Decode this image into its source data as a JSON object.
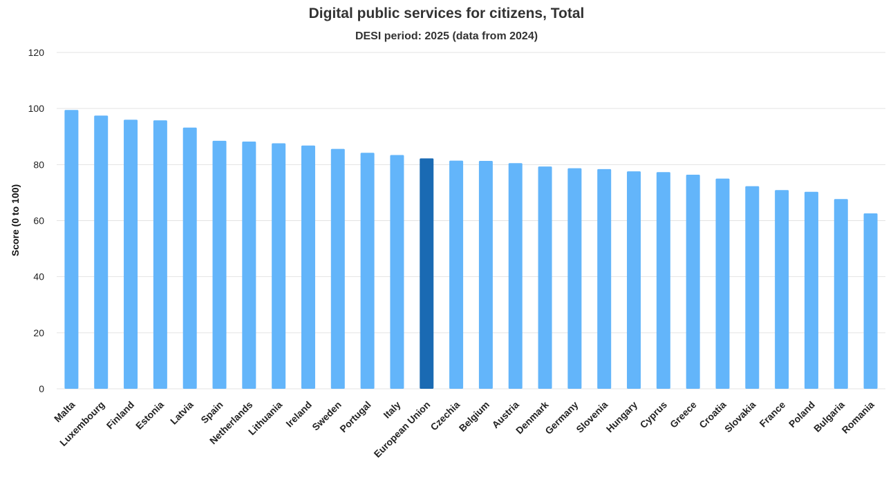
{
  "chart_data": {
    "type": "bar",
    "title": "Digital public services for citizens, Total",
    "subtitle": "DESI period: 2025 (data from 2024)",
    "xlabel": "",
    "ylabel": "Score (0 to 100)",
    "ylim": [
      0,
      120
    ],
    "yticks": [
      "0",
      "20",
      "40",
      "60",
      "80",
      "100",
      "120"
    ],
    "grid": true,
    "categories": [
      "Malta",
      "Luxembourg",
      "Finland",
      "Estonia",
      "Latvia",
      "Spain",
      "Netherlands",
      "Lithuania",
      "Ireland",
      "Sweden",
      "Portugal",
      "Italy",
      "European Union",
      "Czechia",
      "Belgium",
      "Austria",
      "Denmark",
      "Germany",
      "Slovenia",
      "Hungary",
      "Cyprus",
      "Greece",
      "Croatia",
      "Slovakia",
      "France",
      "Poland",
      "Bulgaria",
      "Romania"
    ],
    "values": [
      99.5,
      97.5,
      96,
      95.8,
      93.2,
      88.5,
      88.2,
      87.6,
      86.8,
      85.6,
      84.2,
      83.4,
      82.2,
      81.4,
      81.3,
      80.5,
      79.3,
      78.7,
      78.4,
      77.6,
      77.3,
      76.4,
      75,
      72.3,
      70.9,
      70.3,
      67.7,
      62.6
    ],
    "highlight_category": "European Union",
    "colors": {
      "bar": "#63b5fa",
      "highlight": "#1a6ab3"
    }
  }
}
